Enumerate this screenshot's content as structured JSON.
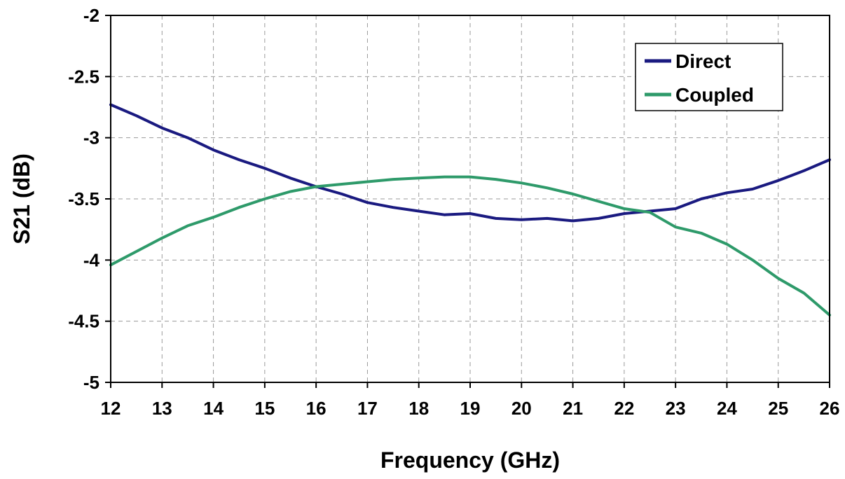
{
  "chart_data": {
    "type": "line",
    "title": "",
    "xlabel": "Frequency (GHz)",
    "ylabel": "S21 (dB)",
    "xlim": [
      12,
      26
    ],
    "ylim": [
      -5,
      -2
    ],
    "xticks": [
      "12",
      "13",
      "14",
      "15",
      "16",
      "17",
      "18",
      "19",
      "20",
      "21",
      "22",
      "23",
      "24",
      "25",
      "26"
    ],
    "yticks": [
      "-2",
      "-2.5",
      "-3",
      "-3.5",
      "-4",
      "-4.5",
      "-5"
    ],
    "grid": true,
    "legend_position": "top-right",
    "series": [
      {
        "name": "Direct",
        "color": "#1a1a80",
        "x": [
          12,
          12.5,
          13,
          13.5,
          14,
          14.5,
          15,
          15.5,
          16,
          16.5,
          17,
          17.5,
          18,
          18.5,
          19,
          19.5,
          20,
          20.5,
          21,
          21.5,
          22,
          22.5,
          23,
          23.5,
          24,
          24.5,
          25,
          25.5,
          26
        ],
        "y": [
          -2.73,
          -2.82,
          -2.92,
          -3.0,
          -3.1,
          -3.18,
          -3.25,
          -3.33,
          -3.4,
          -3.46,
          -3.53,
          -3.57,
          -3.6,
          -3.63,
          -3.62,
          -3.66,
          -3.67,
          -3.66,
          -3.68,
          -3.66,
          -3.62,
          -3.6,
          -3.58,
          -3.5,
          -3.45,
          -3.42,
          -3.35,
          -3.27,
          -3.18
        ]
      },
      {
        "name": "Coupled",
        "color": "#2e9a6a",
        "x": [
          12,
          12.5,
          13,
          13.5,
          14,
          14.5,
          15,
          15.5,
          16,
          16.5,
          17,
          17.5,
          18,
          18.5,
          19,
          19.5,
          20,
          20.5,
          21,
          21.5,
          22,
          22.5,
          23,
          23.5,
          24,
          24.5,
          25,
          25.5,
          26
        ],
        "y": [
          -4.04,
          -3.93,
          -3.82,
          -3.72,
          -3.65,
          -3.57,
          -3.5,
          -3.44,
          -3.4,
          -3.38,
          -3.36,
          -3.34,
          -3.33,
          -3.32,
          -3.32,
          -3.34,
          -3.37,
          -3.41,
          -3.46,
          -3.52,
          -3.58,
          -3.61,
          -3.73,
          -3.78,
          -3.87,
          -4.0,
          -4.15,
          -4.27,
          -4.45
        ]
      }
    ]
  }
}
